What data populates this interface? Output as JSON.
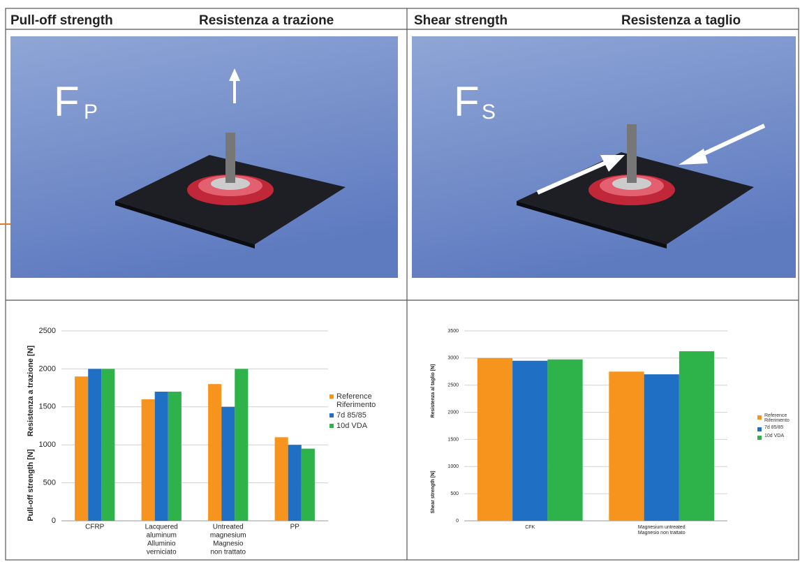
{
  "header": {
    "cells": [
      "Pull-off strength",
      "Resistenza a trazione",
      "Shear strength",
      "Resistenza a taglio"
    ]
  },
  "photos": [
    {
      "label": "F",
      "subscript": "P"
    },
    {
      "label": "F",
      "subscript": "S"
    }
  ],
  "chart_data": [
    {
      "type": "bar",
      "ylabel": [
        "Pull-off strength [N]",
        "Resistenza a trazione [N]"
      ],
      "categories": [
        [
          "CFRP"
        ],
        [
          "Lacquered",
          "aluminum",
          "Alluminio",
          "verniciato"
        ],
        [
          "Untreated",
          "magnesium",
          "Magnesio",
          "non trattato"
        ],
        [
          "PP"
        ]
      ],
      "series": [
        {
          "name": "Reference Riferimento",
          "color": "#f7941d",
          "values": [
            1900,
            1600,
            1800,
            1100
          ]
        },
        {
          "name": "7d 85/85",
          "color": "#1f6fc5",
          "values": [
            2000,
            1700,
            1500,
            1000
          ]
        },
        {
          "name": "10d VDA",
          "color": "#2db34a",
          "values": [
            2000,
            1700,
            2000,
            950
          ]
        }
      ],
      "ylim": [
        0,
        2500
      ],
      "yticks": [
        0,
        500,
        1000,
        1500,
        2000,
        2500
      ],
      "grid": true,
      "legend": "right"
    },
    {
      "type": "bar",
      "ylabel": [
        "Shear strength  [N]",
        "Resistenza al taglio [N]"
      ],
      "categories": [
        [
          "CFK"
        ],
        [
          "Magnesium untreated",
          "Magnesio non trattato"
        ]
      ],
      "series": [
        {
          "name": "Reference Riferimento",
          "color": "#f7941d",
          "values": [
            3000,
            2750
          ]
        },
        {
          "name": "7d 85/85",
          "color": "#1f6fc5",
          "values": [
            2950,
            2700
          ]
        },
        {
          "name": "10d VDA",
          "color": "#2db34a",
          "values": [
            2975,
            3125
          ]
        }
      ],
      "ylim": [
        0,
        3500
      ],
      "yticks": [
        0,
        500,
        1000,
        1500,
        2000,
        2500,
        3000,
        3500
      ],
      "grid": true,
      "legend": "right"
    }
  ]
}
